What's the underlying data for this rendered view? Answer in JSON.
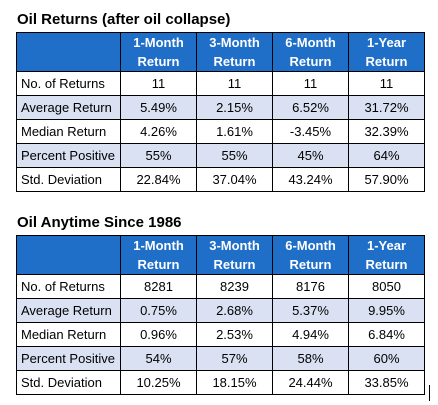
{
  "tables": [
    {
      "title": "Oil Returns (after oil collapse)",
      "columns": [
        {
          "line1": "1-Month",
          "line2": "Return"
        },
        {
          "line1": "3-Month",
          "line2": "Return"
        },
        {
          "line1": "6-Month",
          "line2": "Return"
        },
        {
          "line1": "1-Year",
          "line2": "Return"
        }
      ],
      "rows": [
        {
          "label": "No. of Returns",
          "values": [
            "11",
            "11",
            "11",
            "11"
          ]
        },
        {
          "label": "Average Return",
          "values": [
            "5.49%",
            "2.15%",
            "6.52%",
            "31.72%"
          ]
        },
        {
          "label": "Median Return",
          "values": [
            "4.26%",
            "1.61%",
            "-3.45%",
            "32.39%"
          ]
        },
        {
          "label": "Percent Positive",
          "values": [
            "55%",
            "55%",
            "45%",
            "64%"
          ]
        },
        {
          "label": "Std. Deviation",
          "values": [
            "22.84%",
            "37.04%",
            "43.24%",
            "57.90%"
          ]
        }
      ]
    },
    {
      "title": "Oil Anytime Since 1986",
      "columns": [
        {
          "line1": "1-Month",
          "line2": "Return"
        },
        {
          "line1": "3-Month",
          "line2": "Return"
        },
        {
          "line1": "6-Month",
          "line2": "Return"
        },
        {
          "line1": "1-Year",
          "line2": "Return"
        }
      ],
      "rows": [
        {
          "label": "No. of Returns",
          "values": [
            "8281",
            "8239",
            "8176",
            "8050"
          ]
        },
        {
          "label": "Average Return",
          "values": [
            "0.75%",
            "2.68%",
            "5.37%",
            "9.95%"
          ]
        },
        {
          "label": "Median Return",
          "values": [
            "0.96%",
            "2.53%",
            "4.94%",
            "6.84%"
          ]
        },
        {
          "label": "Percent Positive",
          "values": [
            "54%",
            "57%",
            "58%",
            "60%"
          ]
        },
        {
          "label": "Std. Deviation",
          "values": [
            "10.25%",
            "18.15%",
            "24.44%",
            "33.85%"
          ]
        }
      ]
    }
  ],
  "colors": {
    "header_bg": "#1f6ec8",
    "header_text": "#ffffff",
    "alt_row_bg": "#d9e1f2",
    "plain_row_bg": "#ffffff"
  }
}
